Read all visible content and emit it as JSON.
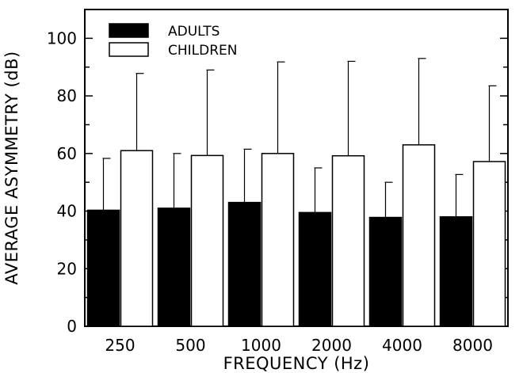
{
  "chart_data": {
    "type": "bar",
    "title": "",
    "xlabel": "FREQUENCY (Hz)",
    "ylabel": "AVERAGE ASYMMETRY (dB)",
    "ylim": [
      0,
      110
    ],
    "yticks": [
      0,
      20,
      40,
      60,
      80,
      100
    ],
    "categories": [
      "250",
      "500",
      "1000",
      "2000",
      "4000",
      "8000"
    ],
    "series": [
      {
        "name": "ADULTS",
        "color": "#000000",
        "values": [
          40.3,
          41,
          43,
          39.5,
          37.8,
          38
        ],
        "error_upper": [
          58.3,
          60,
          61.5,
          55,
          50,
          52.7
        ]
      },
      {
        "name": "CHILDREN",
        "color": "#ffffff",
        "values": [
          61,
          59.3,
          60,
          59.2,
          63,
          57.2
        ],
        "error_upper": [
          87.8,
          89,
          91.8,
          92,
          93,
          83.5
        ]
      }
    ],
    "legend_position": "top-left",
    "grid": false
  }
}
